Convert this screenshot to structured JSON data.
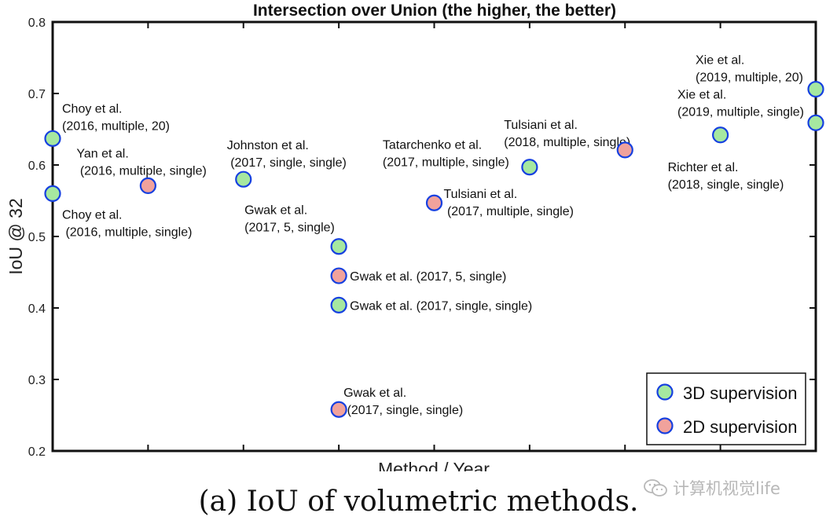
{
  "caption": "(a) IoU of volumetric methods.",
  "watermark": "计算机视觉life",
  "colors": {
    "supervision_3d": "#a6e8a0",
    "supervision_2d": "#f1a29c",
    "marker_edge": "#1640e0",
    "axis": "#111111"
  },
  "chart_data": {
    "type": "scatter",
    "title": "Intersection over Union (the higher, the better)",
    "xlabel": "Method / Year",
    "ylabel": "IoU @ 32",
    "ylim": [
      0.2,
      0.8
    ],
    "xlim": [
      0,
      8
    ],
    "yticks": [
      0.2,
      0.3,
      0.4,
      0.5,
      0.6,
      0.7,
      0.8
    ],
    "ytick_labels": [
      "0.2",
      "0.3",
      "0.4",
      "0.5",
      "0.6",
      "0.7",
      "0.8"
    ],
    "xticks": [
      1,
      2,
      3,
      4,
      5,
      6,
      7
    ],
    "grid": false,
    "legend": {
      "position": "bottom-right",
      "entries": [
        {
          "label": "3D supervision",
          "series": "3d"
        },
        {
          "label": "2D supervision",
          "series": "2d"
        }
      ]
    },
    "points": [
      {
        "x": 0,
        "y": 0.637,
        "series": "3d",
        "label": [
          "Choy et al.",
          "(2016, multiple, 20)"
        ],
        "anchor": "upper-right"
      },
      {
        "x": 0,
        "y": 0.56,
        "series": "3d",
        "label": [
          "Choy et al.",
          " (2016, multiple, single)"
        ],
        "anchor": "lower-right"
      },
      {
        "x": 1,
        "y": 0.571,
        "series": "2d",
        "label": [
          "Yan et al.",
          " (2016, multiple, single)"
        ],
        "anchor": "upper"
      },
      {
        "x": 2,
        "y": 0.58,
        "series": "3d",
        "label": [
          "Johnston et al.",
          " (2017, single, single)"
        ],
        "anchor": "upper"
      },
      {
        "x": 3,
        "y": 0.486,
        "series": "3d",
        "label": [
          "Gwak et al.",
          "(2017, 5, single)"
        ],
        "anchor": "upper-left"
      },
      {
        "x": 3,
        "y": 0.445,
        "series": "2d",
        "label": [
          "Gwak et al. (2017, 5, single)"
        ],
        "anchor": "right"
      },
      {
        "x": 3,
        "y": 0.404,
        "series": "3d",
        "label": [
          "Gwak et al. (2017, single, single)"
        ],
        "anchor": "right"
      },
      {
        "x": 3,
        "y": 0.258,
        "series": "2d",
        "label": [
          "Gwak et al.",
          " (2017, single, single)"
        ],
        "anchor": "upper-right"
      },
      {
        "x": 4,
        "y": 0.547,
        "series": "2d",
        "label": [
          "Tulsiani et al.",
          " (2017, multiple, single)"
        ],
        "anchor": "right"
      },
      {
        "x": 5,
        "y": 0.597,
        "series": "3d",
        "label": [
          "Tatarchenko et al.",
          "(2017, multiple, single)"
        ],
        "anchor": "upper-left"
      },
      {
        "x": 6,
        "y": 0.621,
        "series": "2d",
        "label": [
          "Tulsiani et al.",
          "(2018, multiple, single)"
        ],
        "anchor": "upper-left"
      },
      {
        "x": 7,
        "y": 0.642,
        "series": "3d",
        "label": [
          "Richter et al.",
          "(2018, single, single)"
        ],
        "anchor": "lower-left"
      },
      {
        "x": 8,
        "y": 0.706,
        "series": "3d",
        "label": [
          "Xie et al.",
          "(2019, multiple, 20)"
        ],
        "anchor": "upper-left"
      },
      {
        "x": 8,
        "y": 0.659,
        "series": "3d",
        "label": [
          "Xie et al.",
          "(2019, multiple, single)"
        ],
        "anchor": "upper-left"
      }
    ]
  }
}
